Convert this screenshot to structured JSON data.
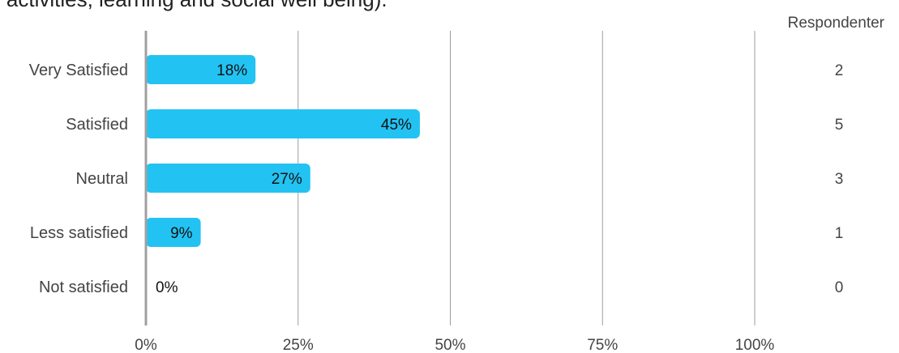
{
  "question": {
    "text_fragment": "r activities, learning and social well being)."
  },
  "respondents_header": "Respondenter",
  "chart_data": {
    "type": "bar",
    "orientation": "horizontal",
    "categories": [
      "Very Satisfied",
      "Satisfied",
      "Neutral",
      "Less satisfied",
      "Not satisfied"
    ],
    "values": [
      18,
      45,
      27,
      9,
      0
    ],
    "value_labels": [
      "18%",
      "45%",
      "27%",
      "9%",
      "0%"
    ],
    "respondents": [
      2,
      5,
      3,
      1,
      0
    ],
    "xlim": [
      0,
      100
    ],
    "x_ticks": [
      "0%",
      "25%",
      "50%",
      "75%",
      "100%"
    ],
    "x_tick_values": [
      0,
      25,
      50,
      75,
      100
    ],
    "grid": true,
    "colors": {
      "bar": "#22C3F2",
      "grid": "#9E9E9E",
      "axis": "#A0A0A0"
    }
  }
}
